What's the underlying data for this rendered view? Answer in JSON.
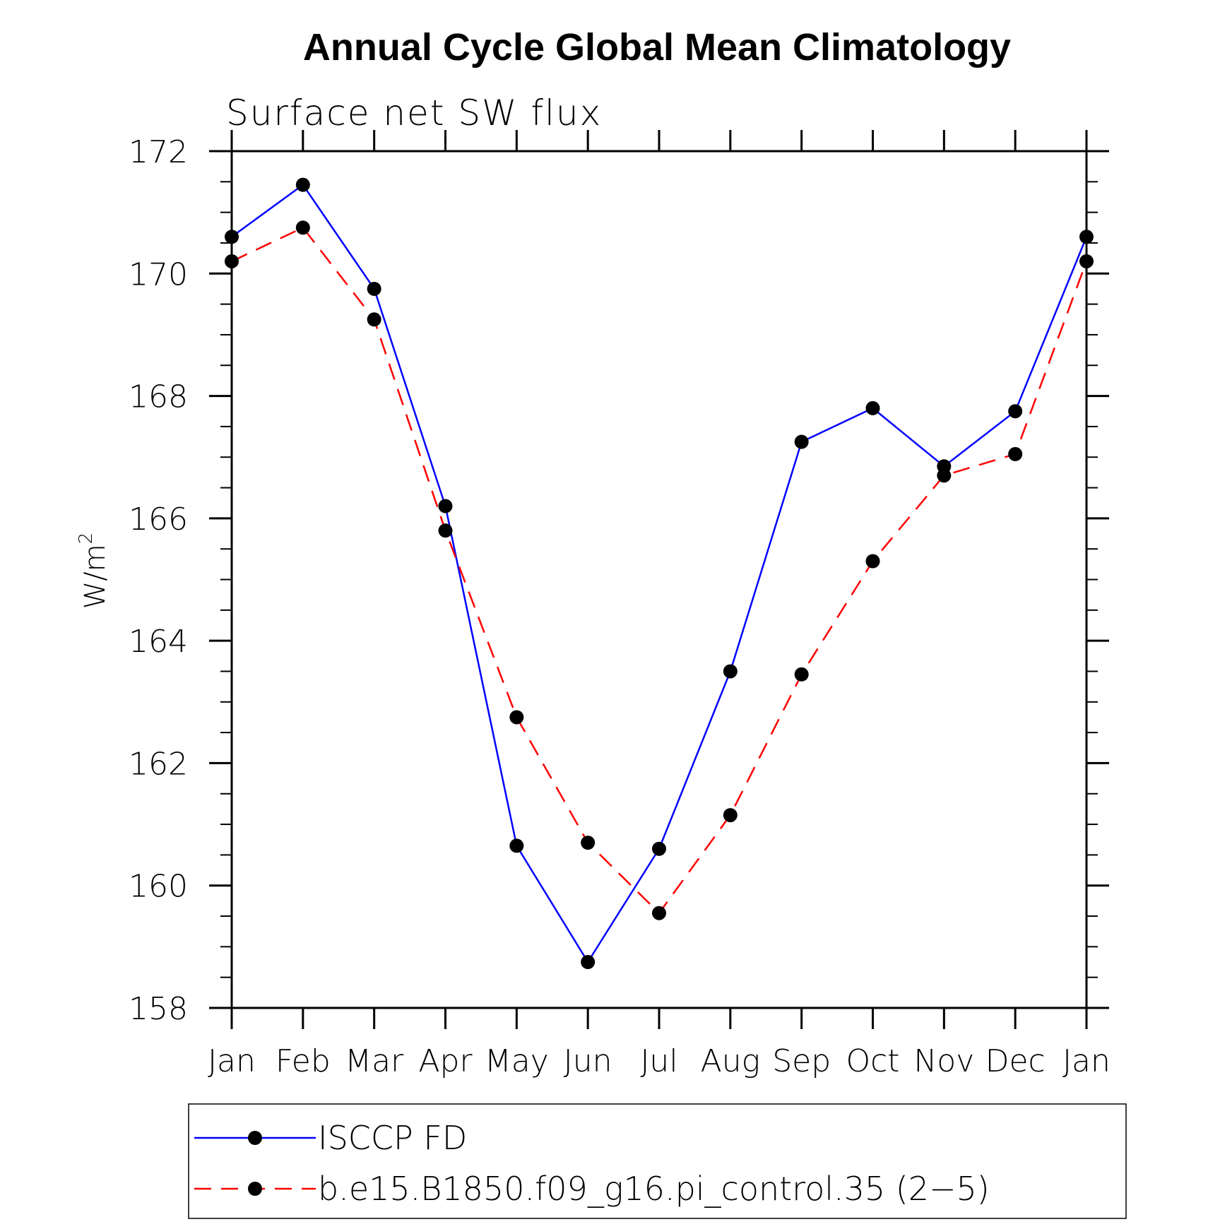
{
  "chart_data": {
    "type": "line",
    "title": "Annual Cycle Global Mean Climatology",
    "subtitle": "Surface net SW flux",
    "ylabel": "W/m",
    "ylabel_superscript": "2",
    "xlabel": "",
    "categories": [
      "Jan",
      "Feb",
      "Mar",
      "Apr",
      "May",
      "Jun",
      "Jul",
      "Aug",
      "Sep",
      "Oct",
      "Nov",
      "Dec",
      "Jan"
    ],
    "ylim": [
      158,
      172
    ],
    "yticks": [
      158,
      160,
      162,
      164,
      166,
      168,
      170,
      172
    ],
    "ytick_labels": [
      "158",
      "160",
      "162",
      "164",
      "166",
      "168",
      "170",
      "172"
    ],
    "grid": false,
    "legend_position": "bottom",
    "series": [
      {
        "name": "ISCCP FD",
        "color": "#0000ff",
        "dash": "solid",
        "marker": "filled-circle",
        "values": [
          170.6,
          171.45,
          169.75,
          166.2,
          160.65,
          158.75,
          160.6,
          163.5,
          167.25,
          167.8,
          166.85,
          167.75,
          170.6
        ]
      },
      {
        "name": "b.e15.B1850.f09_g16.pi_control.35 (2−5)",
        "color": "#ff0000",
        "dash": "dashed",
        "marker": "filled-circle",
        "values": [
          170.2,
          170.75,
          169.25,
          165.8,
          162.75,
          160.7,
          159.55,
          161.15,
          163.45,
          165.3,
          166.7,
          167.05,
          170.2
        ]
      }
    ]
  }
}
